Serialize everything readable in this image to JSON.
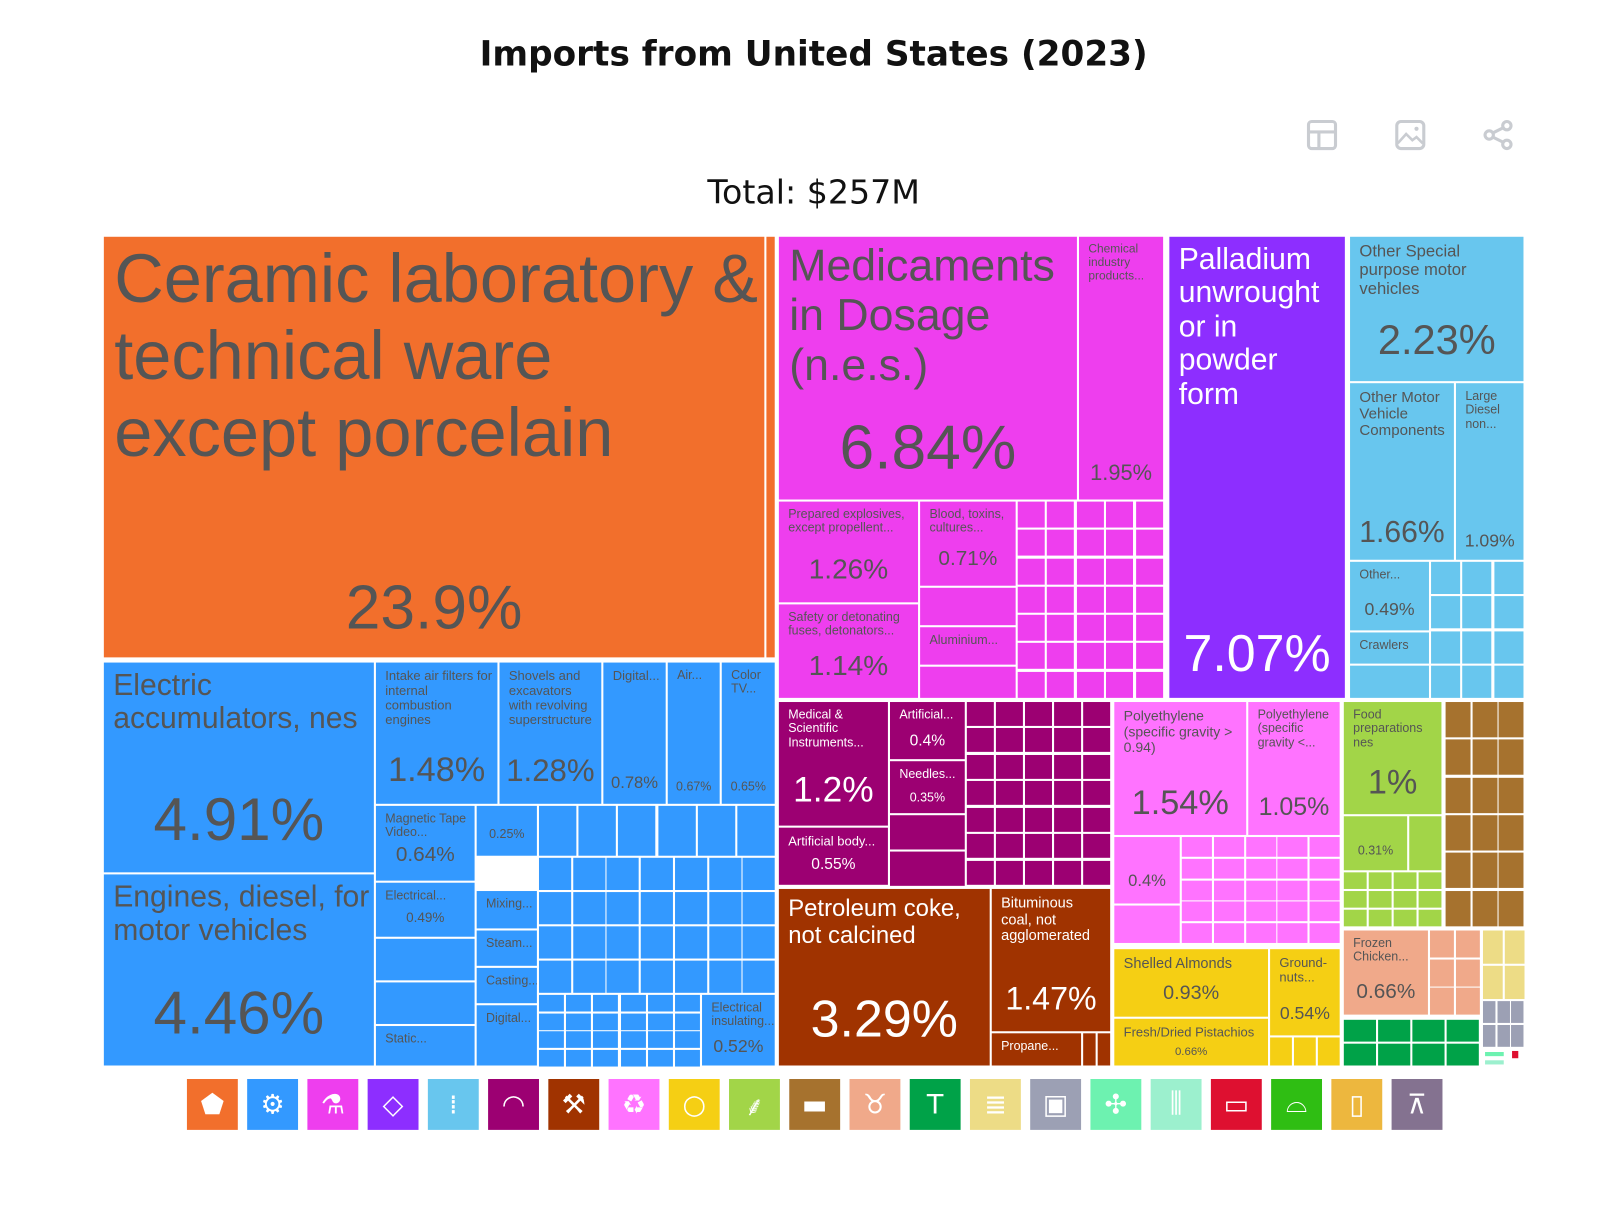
{
  "title": "Imports from United States (2023)",
  "total_label": "Total: $257M",
  "toolbar": [
    {
      "icon": "table-icon"
    },
    {
      "icon": "image-download-icon"
    },
    {
      "icon": "share-icon"
    }
  ],
  "chart_data": {
    "type": "treemap",
    "title": "Imports from United States (2023)",
    "total": "$257M",
    "items": [
      {
        "name": "Ceramic laboratory & technical ware except porcelain",
        "pct": "23.9%",
        "color": "#F26F2C"
      },
      {
        "name": "Electric accumulators, nes",
        "pct": "4.91%",
        "color": "#3399FF"
      },
      {
        "name": "Engines, diesel, for motor vehicles",
        "pct": "4.46%",
        "color": "#3399FF"
      },
      {
        "name": "Intake air filters for internal combustion engines",
        "pct": "1.48%",
        "color": "#3399FF"
      },
      {
        "name": "Shovels and excavators with revolving superstructure",
        "pct": "1.28%",
        "color": "#3399FF"
      },
      {
        "name": "Digital...",
        "pct": "0.78%",
        "color": "#3399FF"
      },
      {
        "name": "Air...",
        "pct": "0.67%",
        "color": "#3399FF"
      },
      {
        "name": "Color TV...",
        "pct": "0.65%",
        "color": "#3399FF"
      },
      {
        "name": "Magnetic Tape Video...",
        "pct": "0.64%",
        "color": "#3399FF"
      },
      {
        "name": "Electrical...",
        "pct": "0.49%",
        "color": "#3399FF"
      },
      {
        "name": "",
        "pct": "0.25%",
        "color": "#3399FF"
      },
      {
        "name": "Mixing...",
        "pct": "",
        "color": "#3399FF"
      },
      {
        "name": "Steam...",
        "pct": "",
        "color": "#3399FF"
      },
      {
        "name": "Casting...",
        "pct": "",
        "color": "#3399FF"
      },
      {
        "name": "Digital...",
        "pct": "",
        "color": "#3399FF"
      },
      {
        "name": "Static...",
        "pct": "",
        "color": "#3399FF"
      },
      {
        "name": "Electrical insulating...",
        "pct": "0.52%",
        "color": "#3399FF"
      },
      {
        "name": "Medicaments in Dosage (n.e.s.)",
        "pct": "6.84%",
        "color": "#EE3EEE"
      },
      {
        "name": "Chemical industry products...",
        "pct": "1.95%",
        "color": "#EE3EEE"
      },
      {
        "name": "Prepared explosives, except propellent...",
        "pct": "1.26%",
        "color": "#EE3EEE"
      },
      {
        "name": "Safety or detonating fuses, detonators...",
        "pct": "1.14%",
        "color": "#EE3EEE"
      },
      {
        "name": "Blood, toxins, cultures...",
        "pct": "0.71%",
        "color": "#EE3EEE"
      },
      {
        "name": "Aluminium...",
        "pct": "",
        "color": "#EE3EEE"
      },
      {
        "name": "Palladium unwrought or in powder form",
        "pct": "7.07%",
        "color": "#8D2EFF"
      },
      {
        "name": "Other Special purpose motor vehicles",
        "pct": "2.23%",
        "color": "#68C6EE"
      },
      {
        "name": "Other Motor Vehicle Components",
        "pct": "1.66%",
        "color": "#68C6EE"
      },
      {
        "name": "Large Diesel non...",
        "pct": "1.09%",
        "color": "#68C6EE"
      },
      {
        "name": "Other...",
        "pct": "0.49%",
        "color": "#68C6EE"
      },
      {
        "name": "Crawlers",
        "pct": "",
        "color": "#68C6EE"
      },
      {
        "name": "Medical & Scientific Instruments...",
        "pct": "1.2%",
        "color": "#9C0072"
      },
      {
        "name": "Artificial...",
        "pct": "0.4%",
        "color": "#9C0072"
      },
      {
        "name": "Needles...",
        "pct": "0.35%",
        "color": "#9C0072"
      },
      {
        "name": "Artificial body...",
        "pct": "0.55%",
        "color": "#9C0072"
      },
      {
        "name": "Petroleum coke, not calcined",
        "pct": "3.29%",
        "color": "#A03300"
      },
      {
        "name": "Bituminous coal, not agglomerated",
        "pct": "1.47%",
        "color": "#A03300"
      },
      {
        "name": "Propane...",
        "pct": "",
        "color": "#A03300"
      },
      {
        "name": "Polyethylene (specific gravity > 0.94)",
        "pct": "1.54%",
        "color": "#FF73FF"
      },
      {
        "name": "Polyethylene (specific gravity <...",
        "pct": "1.05%",
        "color": "#FF73FF"
      },
      {
        "name": "",
        "pct": "0.4%",
        "color": "#FF73FF"
      },
      {
        "name": "Shelled Almonds",
        "pct": "0.93%",
        "color": "#F5CF14"
      },
      {
        "name": "Fresh/Dried Pistachios",
        "pct": "0.66%",
        "color": "#F5CF14"
      },
      {
        "name": "Ground-nuts...",
        "pct": "0.54%",
        "color": "#F5CF14"
      },
      {
        "name": "Food preparations nes",
        "pct": "1%",
        "color": "#A2D548"
      },
      {
        "name": "",
        "pct": "0.31%",
        "color": "#A2D548"
      },
      {
        "name": "Frozen Chicken...",
        "pct": "0.66%",
        "color": "#F0A98A"
      }
    ]
  },
  "legend": [
    {
      "icon": "mineral-rock-icon",
      "color": "#F26F2C"
    },
    {
      "icon": "gear-icon",
      "color": "#3399FF"
    },
    {
      "icon": "flask-icon",
      "color": "#EE3EEE"
    },
    {
      "icon": "diamond-icon",
      "color": "#8D2EFF"
    },
    {
      "icon": "road-icon",
      "color": "#68C6EE"
    },
    {
      "icon": "gauge-icon",
      "color": "#9C0072"
    },
    {
      "icon": "pickaxe-icon",
      "color": "#A03300"
    },
    {
      "icon": "recycle-icon",
      "color": "#FF73FF"
    },
    {
      "icon": "tomato-icon",
      "color": "#F5CF14"
    },
    {
      "icon": "wheat-icon",
      "color": "#A2D548"
    },
    {
      "icon": "anvil-icon",
      "color": "#A6722E"
    },
    {
      "icon": "cow-icon",
      "color": "#F0A98A"
    },
    {
      "icon": "tshirt-icon",
      "color": "#00A248"
    },
    {
      "icon": "scroll-icon",
      "color": "#EDDC86"
    },
    {
      "icon": "box-icon",
      "color": "#9CA0B4"
    },
    {
      "icon": "leather-hide-icon",
      "color": "#6DF2B0"
    },
    {
      "icon": "bullets-icon",
      "color": "#9CF0CE"
    },
    {
      "icon": "log-icon",
      "color": "#DE1030"
    },
    {
      "icon": "sneaker-icon",
      "color": "#2FBE13"
    },
    {
      "icon": "bottle-icon",
      "color": "#EDB73E"
    },
    {
      "icon": "easel-icon",
      "color": "#847290"
    }
  ]
}
